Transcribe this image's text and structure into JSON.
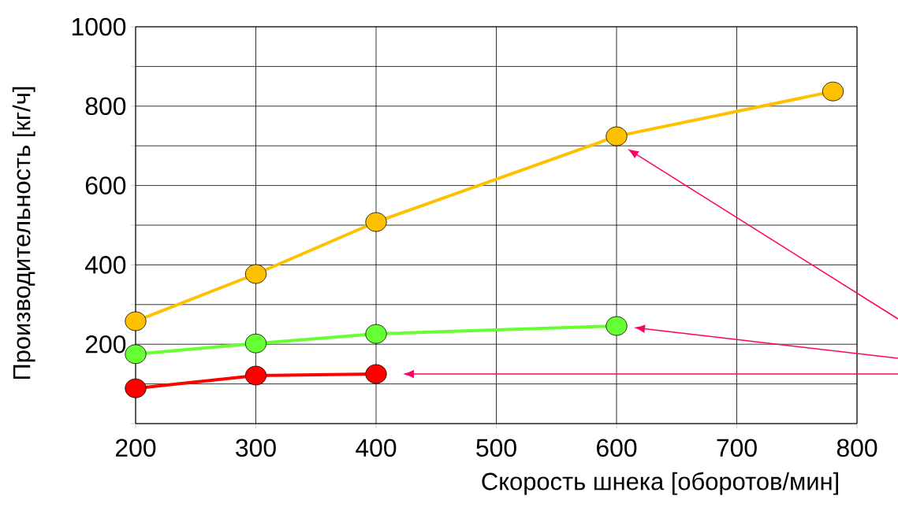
{
  "chart_data": {
    "type": "line",
    "xlabel": "Скорость шнека [оборотов/мин]",
    "ylabel": "Производительность [кг/ч]",
    "xlim": [
      200,
      800
    ],
    "xticks": [
      200,
      300,
      400,
      500,
      600,
      700,
      800
    ],
    "ylim": [
      0,
      1000
    ],
    "yticks": [
      {
        "value": 0,
        "label": null
      },
      {
        "value": 100,
        "label": null
      },
      200,
      {
        "value": 300,
        "label": null
      },
      400,
      {
        "value": 500,
        "label": null
      },
      600,
      {
        "value": 700,
        "label": null
      },
      800,
      {
        "value": 900,
        "label": null
      },
      1000
    ],
    "grid": true,
    "marker": "circle",
    "line_style": "solid",
    "series": [
      {
        "color": "#ffc000",
        "x": [
          200,
          300,
          400,
          600,
          780
        ],
        "values": [
          258,
          377,
          508,
          724,
          837
        ]
      },
      {
        "color": "#66ff33",
        "x": [
          200,
          300,
          400,
          600
        ],
        "values": [
          175,
          202,
          226,
          246
        ]
      },
      {
        "color": "#ff0000",
        "x": [
          200,
          300,
          400
        ],
        "values": [
          89,
          121,
          125
        ]
      }
    ]
  }
}
